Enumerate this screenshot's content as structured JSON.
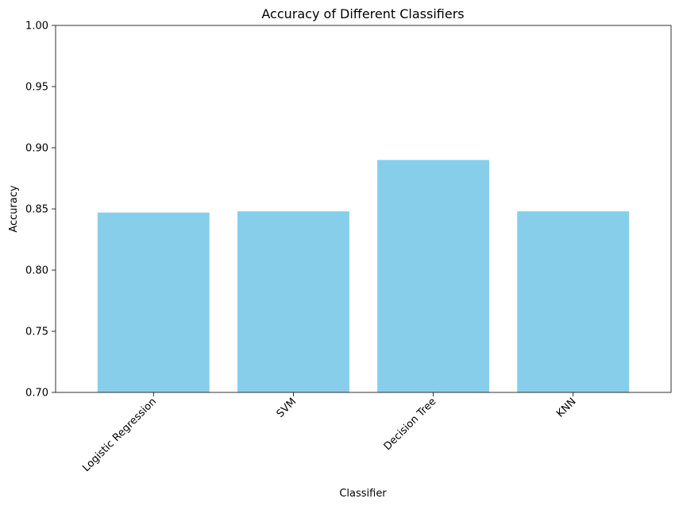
{
  "chart_data": {
    "type": "bar",
    "title": "Accuracy of Different Classifiers",
    "xlabel": "Classifier",
    "ylabel": "Accuracy",
    "categories": [
      "Logistic Regression",
      "SVM",
      "Decision Tree",
      "KNN"
    ],
    "values": [
      0.847,
      0.848,
      0.89,
      0.848
    ],
    "ylim": [
      0.7,
      1.0
    ],
    "yticks": [
      0.7,
      0.75,
      0.8,
      0.85,
      0.9,
      0.95,
      1.0
    ],
    "ytick_labels": [
      "0.70",
      "0.75",
      "0.80",
      "0.85",
      "0.90",
      "0.95",
      "1.00"
    ],
    "xtick_rotation": 45,
    "bar_color": "#87CEEB",
    "grid": false,
    "legend": "none"
  }
}
